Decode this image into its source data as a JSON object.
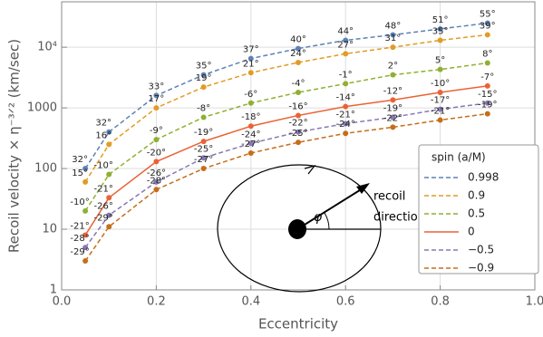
{
  "chart_data": {
    "type": "line",
    "xlabel": "Eccentricity",
    "ylabel": "Recoil velocity × η⁻³ᐟ² (km/sec)",
    "x": [
      0.05,
      0.1,
      0.2,
      0.3,
      0.4,
      0.5,
      0.6,
      0.7,
      0.8,
      0.9
    ],
    "xlim": [
      0,
      1
    ],
    "xticks": [
      {
        "value": 0,
        "label": "0.0"
      },
      0.2,
      0.4,
      0.6,
      0.8,
      {
        "value": 1,
        "label": "1.0"
      }
    ],
    "ylim": [
      1,
      56000
    ],
    "log_y": true,
    "yticks": [
      1,
      10,
      100,
      1000,
      {
        "value": 10000,
        "label": "10⁴"
      }
    ],
    "grid": true,
    "legend_title": "spin (a/M)",
    "series": [
      {
        "name": "0.998",
        "color": "#5e81b5",
        "style": "dashed",
        "values": [
          100,
          400,
          1600,
          3500,
          6500,
          9500,
          13000,
          16000,
          20000,
          25000
        ],
        "point_labels": [
          "32°",
          "32°",
          "33°",
          "35°",
          "37°",
          "40°",
          "44°",
          "48°",
          "51°",
          "55°"
        ]
      },
      {
        "name": "0.9",
        "color": "#e19c24",
        "style": "dashed",
        "values": [
          60,
          250,
          1000,
          2200,
          3800,
          5600,
          7800,
          10000,
          13000,
          16000
        ],
        "point_labels": [
          "15°",
          "16°",
          "17°",
          "19°",
          "21°",
          "24°",
          "27°",
          "31°",
          "35°",
          "39°"
        ]
      },
      {
        "name": "0.5",
        "color": "#8fb032",
        "style": "dashed",
        "values": [
          20,
          80,
          300,
          700,
          1200,
          1800,
          2500,
          3500,
          4300,
          5500
        ],
        "point_labels": [
          "-10°",
          "-10°",
          "-9°",
          "-8°",
          "-6°",
          "-4°",
          "-1°",
          "2°",
          "5°",
          "8°"
        ]
      },
      {
        "name": "0",
        "color": "#eb6235",
        "style": "solid",
        "values": [
          8,
          33,
          130,
          280,
          500,
          750,
          1050,
          1350,
          1800,
          2300
        ],
        "point_labels": [
          "-21°",
          "-21°",
          "-20°",
          "-19°",
          "-18°",
          "-16°",
          "-14°",
          "-12°",
          "-10°",
          "-7°"
        ]
      },
      {
        "name": "−0.5",
        "color": "#8778b3",
        "style": "dashed",
        "values": [
          5,
          17,
          60,
          150,
          260,
          400,
          550,
          700,
          950,
          1200
        ],
        "point_labels": [
          "-28°",
          "-26°",
          "-26°",
          "-25°",
          "-24°",
          "-22°",
          "-21°",
          "-19°",
          "-17°",
          "-15°"
        ]
      },
      {
        "name": "−0.9",
        "color": "#c56e1a",
        "style": "dashed",
        "values": [
          3,
          11,
          45,
          100,
          180,
          270,
          380,
          480,
          630,
          800
        ],
        "point_labels": [
          "-29°",
          "-29°",
          "-28°",
          "-27°",
          "-27°",
          "-25°",
          "-24°",
          "-22°",
          "-21°",
          "-19°"
        ]
      }
    ],
    "inset": {
      "arrow_label_1": "recoil",
      "arrow_label_2": "direction",
      "angle_label": "φ"
    }
  }
}
